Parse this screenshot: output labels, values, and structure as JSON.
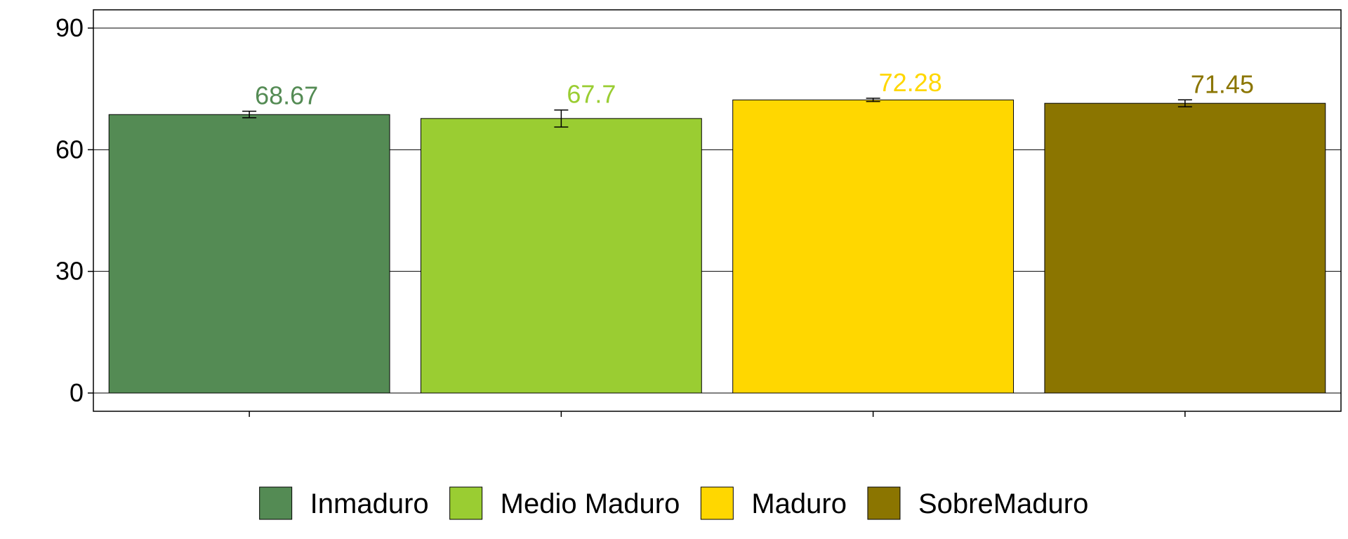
{
  "chart_data": {
    "type": "bar",
    "title": "",
    "xlabel": "",
    "ylabel": "",
    "categories": [
      "Inmaduro",
      "Medio Maduro",
      "Maduro",
      "SobreMaduro"
    ],
    "values": [
      68.67,
      67.7,
      72.28,
      71.45
    ],
    "value_labels": [
      "68.67",
      "67.7",
      "72.28",
      "71.45"
    ],
    "error_low": [
      67.9,
      65.6,
      71.9,
      70.6
    ],
    "error_high": [
      69.5,
      69.8,
      72.7,
      72.3
    ],
    "colors": [
      "#548B54",
      "#9ACD32",
      "#FFD700",
      "#8B7500"
    ],
    "ylim": [
      -4.5,
      94.5
    ],
    "yticks": [
      0,
      30,
      60,
      90
    ],
    "ytick_labels": [
      "0",
      "30",
      "60",
      "90"
    ],
    "grid": "horizontal major",
    "legend": {
      "position": "bottom",
      "entries": [
        "Inmaduro",
        "Medio Maduro",
        "Maduro",
        "SobreMaduro"
      ]
    }
  }
}
